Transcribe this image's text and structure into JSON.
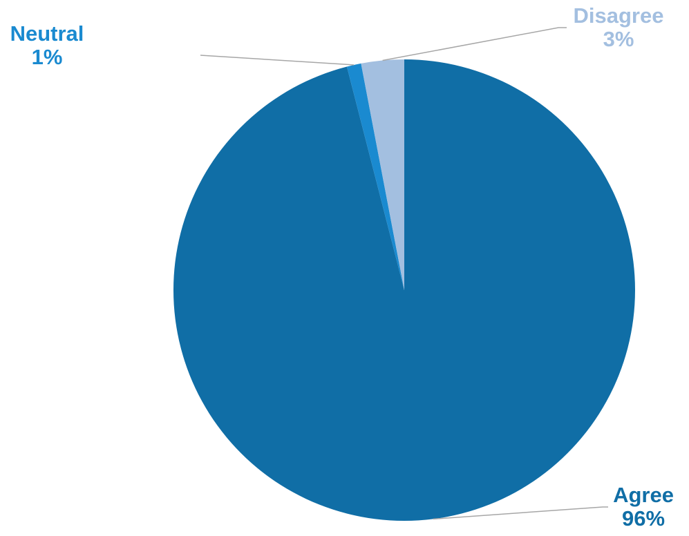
{
  "chart_data": {
    "type": "pie",
    "categories": [
      "Agree",
      "Neutral",
      "Disagree"
    ],
    "values": [
      96,
      1,
      3
    ],
    "labels": [
      {
        "name": "Agree",
        "value": "96%"
      },
      {
        "name": "Neutral",
        "value": "1%"
      },
      {
        "name": "Disagree",
        "value": "3%"
      }
    ],
    "colors": {
      "Agree": "#106ea6",
      "Neutral": "#1a8ad0",
      "Disagree": "#a3bfe0"
    },
    "label_colors": {
      "Agree": "#106ea6",
      "Neutral": "#1a8ad0",
      "Disagree": "#a3bfe0"
    },
    "start": "12 o'clock",
    "direction": "clockwise",
    "data_labels": "outside with leader lines",
    "legend": "none"
  }
}
